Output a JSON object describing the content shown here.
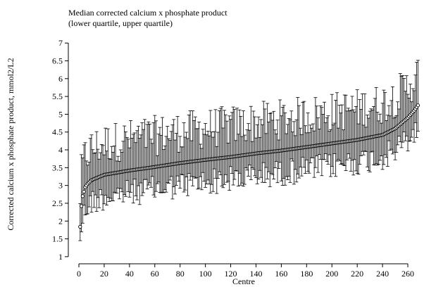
{
  "chart_data": {
    "type": "scatter",
    "title": "Median corrected calcium x phosphate product",
    "subtitle": "(lower quartile, upper quartile)",
    "xlabel": "Centre",
    "ylabel": "Corrected calcium x phosphate product, mmol2/L2",
    "xlim": [
      0,
      270
    ],
    "ylim": [
      0.8,
      7.3
    ],
    "xticks": [
      0,
      20,
      40,
      60,
      80,
      100,
      120,
      140,
      160,
      180,
      200,
      220,
      240,
      260
    ],
    "yticks": [
      1,
      1.5,
      2,
      2.5,
      3,
      3.5,
      4,
      4.5,
      5,
      5.5,
      6,
      6.5,
      7
    ],
    "grid": false,
    "n_centres": 268,
    "median_profile": [
      [
        1,
        1.84
      ],
      [
        2,
        2.42
      ],
      [
        3,
        2.7
      ],
      [
        5,
        2.95
      ],
      [
        7,
        3.05
      ],
      [
        10,
        3.15
      ],
      [
        20,
        3.3
      ],
      [
        40,
        3.42
      ],
      [
        60,
        3.52
      ],
      [
        80,
        3.63
      ],
      [
        100,
        3.72
      ],
      [
        120,
        3.8
      ],
      [
        140,
        3.9
      ],
      [
        160,
        3.98
      ],
      [
        180,
        4.08
      ],
      [
        200,
        4.18
      ],
      [
        220,
        4.28
      ],
      [
        240,
        4.42
      ],
      [
        250,
        4.6
      ],
      [
        260,
        4.9
      ],
      [
        265,
        5.1
      ],
      [
        268,
        5.25
      ]
    ]
  }
}
